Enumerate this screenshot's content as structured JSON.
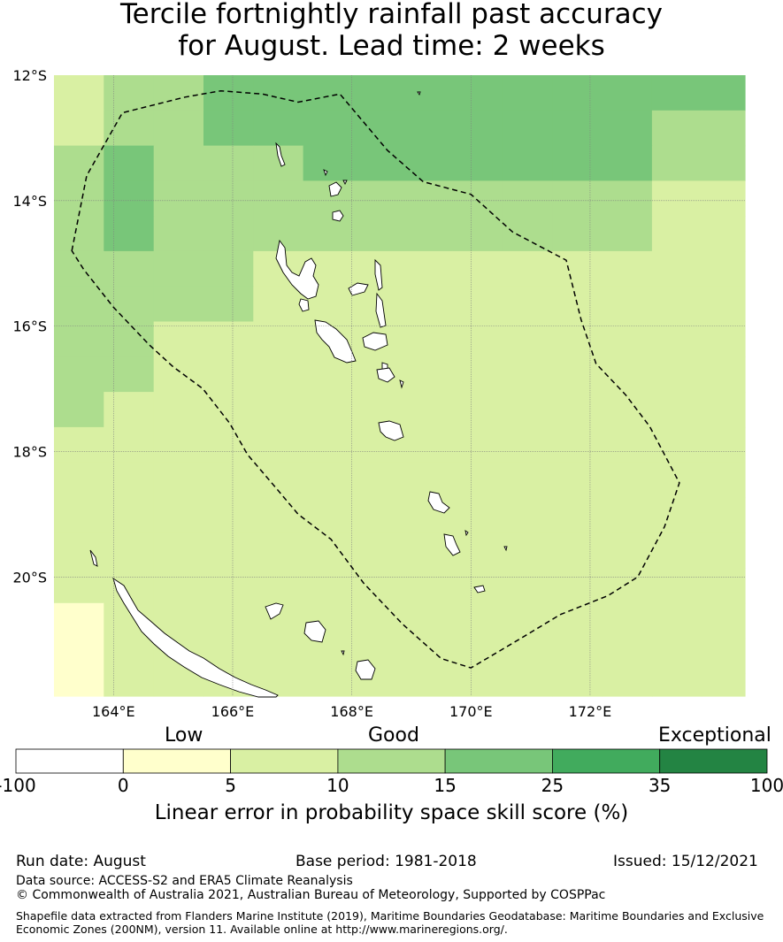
{
  "title_line1": "Tercile fortnightly rainfall past accuracy",
  "title_line2": "for August. Lead time: 2 weeks",
  "map": {
    "lon_range": [
      163,
      174.6
    ],
    "lat_range": [
      -21.9,
      -12
    ],
    "lat_ticks": [
      {
        "value": -12,
        "label": "12°S"
      },
      {
        "value": -14,
        "label": "14°S"
      },
      {
        "value": -16,
        "label": "16°S"
      },
      {
        "value": -18,
        "label": "18°S"
      },
      {
        "value": -20,
        "label": "20°S"
      }
    ],
    "lon_ticks": [
      {
        "value": 164,
        "label": "164°E"
      },
      {
        "value": 166,
        "label": "166°E"
      },
      {
        "value": 168,
        "label": "168°E"
      },
      {
        "value": 170,
        "label": "170°E"
      },
      {
        "value": 172,
        "label": "172°E"
      }
    ],
    "eez_boundary": [
      [
        163.3,
        -14.8
      ],
      [
        163.55,
        -13.6
      ],
      [
        164.15,
        -12.6
      ],
      [
        165.2,
        -12.35
      ],
      [
        165.8,
        -12.25
      ],
      [
        166.5,
        -12.3
      ],
      [
        167.1,
        -12.43
      ],
      [
        167.8,
        -12.3
      ],
      [
        168.6,
        -13.2
      ],
      [
        169.2,
        -13.7
      ],
      [
        170.0,
        -13.9
      ],
      [
        170.7,
        -14.5
      ],
      [
        171.6,
        -14.95
      ],
      [
        171.85,
        -15.9
      ],
      [
        172.1,
        -16.6
      ],
      [
        172.6,
        -17.1
      ],
      [
        173.0,
        -17.6
      ],
      [
        173.5,
        -18.5
      ],
      [
        173.25,
        -19.2
      ],
      [
        172.8,
        -20.0
      ],
      [
        172.3,
        -20.3
      ],
      [
        171.5,
        -20.6
      ],
      [
        170.8,
        -21.0
      ],
      [
        170.0,
        -21.45
      ],
      [
        169.5,
        -21.3
      ],
      [
        168.85,
        -20.75
      ],
      [
        168.2,
        -20.1
      ],
      [
        167.65,
        -19.4
      ],
      [
        167.1,
        -19.0
      ],
      [
        166.7,
        -18.55
      ],
      [
        166.25,
        -18.05
      ],
      [
        165.95,
        -17.55
      ],
      [
        165.5,
        -17.0
      ],
      [
        165.0,
        -16.65
      ],
      [
        164.6,
        -16.3
      ],
      [
        164.0,
        -15.7
      ],
      [
        163.5,
        -15.1
      ],
      [
        163.3,
        -14.8
      ]
    ],
    "skill_grid": {
      "lon0": 163,
      "lat_top": -12,
      "dlon": 0.8366,
      "dlat": 0.5611,
      "rows": [
        "2334444444444443333444444",
        "2334444444443333333444444",
        "3433344444443333333444444",
        "3433333333332222223333333",
        "3433333333332222223333333",
        "3333222222222222222233333",
        "3333222222222222222233333",
        "3322222222222222222222222",
        "3322222222222222222222222",
        "3222222222222222222222222",
        "2222222222222222222222222",
        "2222222222222222222222223",
        "2222222222222222222222223",
        "2222222222222222222222222",
        "2222222222222222222222222",
        "1222222222222222222222222",
        "1222222222222222222222222",
        "1222222222222222222222222"
      ]
    }
  },
  "colorbar": {
    "head_low": "Low",
    "head_good": "Good",
    "head_exceptional": "Exceptional",
    "bins": [
      {
        "from": -100,
        "to": 0,
        "color": "#ffffff"
      },
      {
        "from": 0,
        "to": 5,
        "color": "#ffffcc"
      },
      {
        "from": 5,
        "to": 10,
        "color": "#d9f0a3"
      },
      {
        "from": 10,
        "to": 15,
        "color": "#addd8e"
      },
      {
        "from": 15,
        "to": 25,
        "color": "#78c679"
      },
      {
        "from": 25,
        "to": 35,
        "color": "#41ab5d"
      },
      {
        "from": 35,
        "to": 100,
        "color": "#238443"
      }
    ],
    "tick_labels": [
      "-100",
      "0",
      "5",
      "10",
      "15",
      "25",
      "35",
      "100"
    ],
    "label": "Linear error in probability space skill score (%)"
  },
  "footer": {
    "run_date": "Run date: August",
    "base_period": "Base period: 1981-2018",
    "issued": "Issued: 15/12/2021",
    "data_source": "Data source: ACCESS-S2 and ERA5 Climate Reanalysis",
    "copyright": "© Commonwealth of Australia 2021, Australian Bureau of Meteorology, Supported by COSPPac",
    "shapefile_line1": "Shapefile data extracted from Flanders Marine Institute (2019), Maritime Boundaries Geodatabase: Maritime Boundaries and Exclusive",
    "shapefile_line2": "Economic Zones (200NM), version 11. Available online at http://www.marineregions.org/."
  }
}
